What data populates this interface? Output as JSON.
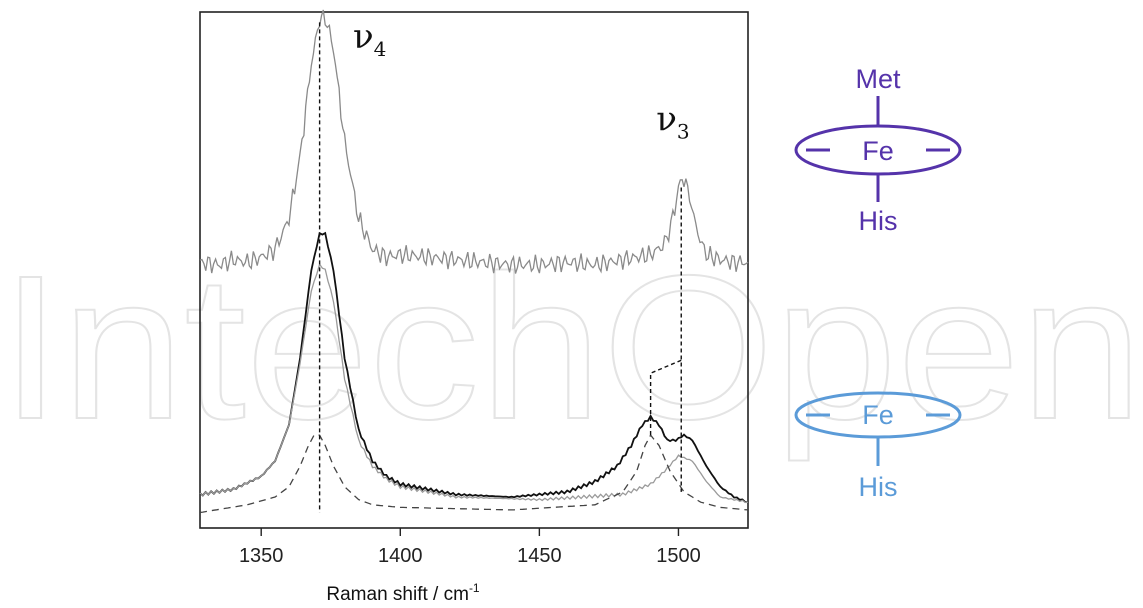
{
  "watermark": {
    "text": "IntechOpen",
    "color": "#e6e6e6"
  },
  "chart_data": {
    "type": "line",
    "title": "",
    "xlabel": "Raman shift  / cm",
    "xlabel_sup": "-1",
    "ylabel": "",
    "xlim": [
      1328,
      1525
    ],
    "ylim": [
      0,
      1
    ],
    "xticks": [
      1350,
      1400,
      1450,
      1500
    ],
    "yticks_shown": false,
    "grid": false,
    "legend": "none",
    "series": [
      {
        "role": "upper spectrum",
        "color": "#8a8a8a",
        "style": "solid",
        "x": [
          1328,
          1335,
          1340,
          1345,
          1350,
          1355,
          1360,
          1364,
          1368,
          1371,
          1373,
          1376,
          1380,
          1385,
          1390,
          1395,
          1400,
          1410,
          1420,
          1430,
          1440,
          1450,
          1460,
          1470,
          1480,
          1490,
          1495,
          1498,
          1500,
          1502,
          1504,
          1507,
          1510,
          1515,
          1520,
          1525
        ],
        "y": [
          0.515,
          0.51,
          0.52,
          0.515,
          0.525,
          0.54,
          0.6,
          0.72,
          0.9,
          0.985,
          0.99,
          0.93,
          0.75,
          0.6,
          0.54,
          0.525,
          0.53,
          0.525,
          0.52,
          0.515,
          0.51,
          0.51,
          0.515,
          0.51,
          0.52,
          0.53,
          0.55,
          0.6,
          0.66,
          0.68,
          0.64,
          0.57,
          0.53,
          0.52,
          0.515,
          0.515
        ]
      },
      {
        "role": "lower spectrum (sum)",
        "color": "#111111",
        "style": "solid",
        "x": [
          1328,
          1340,
          1350,
          1355,
          1360,
          1364,
          1368,
          1371,
          1373,
          1376,
          1380,
          1385,
          1390,
          1395,
          1400,
          1410,
          1420,
          1440,
          1460,
          1470,
          1478,
          1483,
          1487,
          1490,
          1493,
          1496,
          1499,
          1502,
          1505,
          1510,
          1515,
          1520,
          1525
        ],
        "y": [
          0.065,
          0.075,
          0.1,
          0.13,
          0.2,
          0.33,
          0.5,
          0.57,
          0.57,
          0.5,
          0.33,
          0.19,
          0.13,
          0.1,
          0.085,
          0.075,
          0.065,
          0.06,
          0.07,
          0.09,
          0.12,
          0.16,
          0.2,
          0.215,
          0.2,
          0.17,
          0.17,
          0.18,
          0.17,
          0.12,
          0.08,
          0.06,
          0.05
        ]
      },
      {
        "role": "component 1",
        "color": "#9a9a9a",
        "style": "solid",
        "x": [
          1328,
          1340,
          1350,
          1355,
          1360,
          1364,
          1368,
          1371,
          1373,
          1376,
          1380,
          1385,
          1390,
          1395,
          1400,
          1420,
          1450,
          1480,
          1490,
          1495,
          1500,
          1505,
          1510,
          1515,
          1525
        ],
        "y": [
          0.065,
          0.075,
          0.1,
          0.13,
          0.2,
          0.32,
          0.46,
          0.51,
          0.5,
          0.44,
          0.29,
          0.17,
          0.12,
          0.095,
          0.08,
          0.06,
          0.055,
          0.065,
          0.085,
          0.11,
          0.14,
          0.13,
          0.09,
          0.06,
          0.05
        ]
      },
      {
        "role": "component 2",
        "color": "#444444",
        "style": "dashed",
        "x": [
          1328,
          1345,
          1355,
          1360,
          1364,
          1367,
          1369,
          1371,
          1373,
          1376,
          1380,
          1385,
          1390,
          1400,
          1440,
          1470,
          1480,
          1485,
          1488,
          1490,
          1493,
          1497,
          1502,
          1508,
          1515,
          1525
        ],
        "y": [
          0.03,
          0.045,
          0.06,
          0.08,
          0.12,
          0.16,
          0.18,
          0.18,
          0.16,
          0.12,
          0.08,
          0.055,
          0.045,
          0.04,
          0.035,
          0.045,
          0.07,
          0.11,
          0.16,
          0.18,
          0.16,
          0.11,
          0.07,
          0.05,
          0.04,
          0.035
        ]
      }
    ],
    "annotations": [
      {
        "label": "ν",
        "sub": "4",
        "x": 1383,
        "y": 0.93
      },
      {
        "label": "ν",
        "sub": "3",
        "x": 1492,
        "y": 0.77
      }
    ],
    "guides": {
      "v4_x": 1371,
      "v3_x": 1501,
      "v3_shift_x": 1490,
      "v4_ytop": 0.98,
      "v4_ybottom": 0.03,
      "v3_ytop": 0.66,
      "v3_ybottom": 0.07,
      "v3_step_y": 0.325,
      "v3_left_y": 0.3,
      "v3_shift_ybottom": 0.18
    }
  },
  "schematics": [
    {
      "top_label": "Met",
      "center_label": "Fe",
      "bottom_label": "His",
      "color": "#5533aa"
    },
    {
      "top_label": "",
      "center_label": "Fe",
      "bottom_label": "His",
      "color": "#5b9bd8"
    }
  ]
}
